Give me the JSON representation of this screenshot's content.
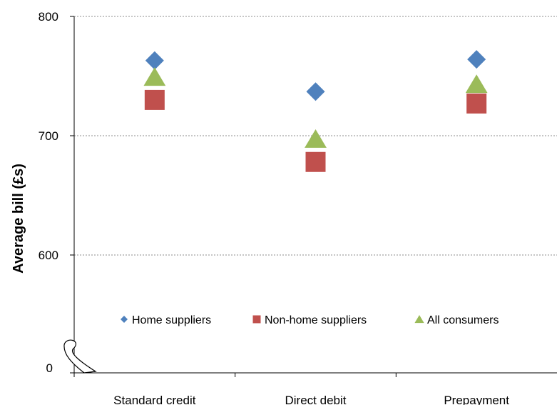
{
  "chart_data": {
    "type": "scatter",
    "title": "",
    "xlabel": "",
    "ylabel": "Average bill (£s)",
    "categories": [
      "Standard credit",
      "Direct debit",
      "Prepayment"
    ],
    "y_ticks": [
      "0",
      "600",
      "700",
      "800"
    ],
    "ylim": [
      500,
      800
    ],
    "axis_break": true,
    "grid": true,
    "legend_position": "inside-bottom",
    "series": [
      {
        "name": "Home suppliers",
        "marker": "diamond",
        "color": "#4F81BD",
        "values": [
          763,
          737,
          764
        ]
      },
      {
        "name": "Non-home suppliers",
        "marker": "square",
        "color": "#C0504D",
        "values": [
          730,
          678,
          727
        ]
      },
      {
        "name": "All consumers",
        "marker": "triangle",
        "color": "#9BBB59",
        "values": [
          749,
          697,
          743
        ]
      }
    ]
  }
}
